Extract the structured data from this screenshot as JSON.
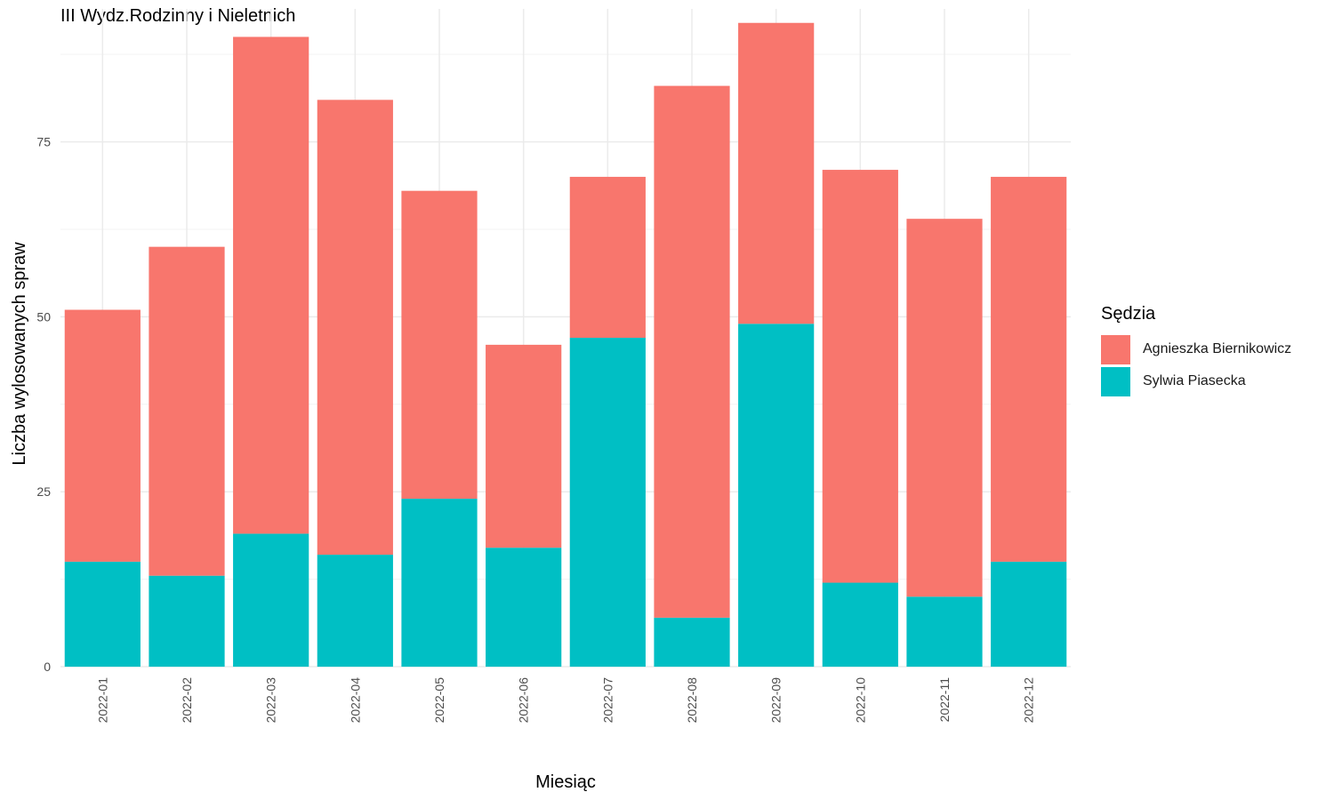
{
  "chart_data": {
    "type": "bar",
    "stacked": true,
    "title": "III Wydz.Rodzinny i Nieletnich",
    "xlabel": "Miesiąc",
    "ylabel": "Liczba wylosowanych spraw",
    "categories": [
      "2022-01",
      "2022-02",
      "2022-03",
      "2022-04",
      "2022-05",
      "2022-06",
      "2022-07",
      "2022-08",
      "2022-09",
      "2022-10",
      "2022-11",
      "2022-12"
    ],
    "series": [
      {
        "name": "Sylwia Piasecka",
        "color": "#00BFC4",
        "values": [
          15,
          13,
          19,
          16,
          24,
          17,
          47,
          7,
          49,
          12,
          10,
          15
        ]
      },
      {
        "name": "Agnieszka Biernikowicz",
        "color": "#F8766D",
        "values": [
          36,
          47,
          71,
          65,
          44,
          29,
          23,
          76,
          43,
          59,
          54,
          55
        ]
      }
    ],
    "yticks": [
      0,
      25,
      50,
      75
    ],
    "ylim": [
      0,
      94
    ],
    "grid": true,
    "legend": {
      "title": "Sędzia",
      "position": "right",
      "entries": [
        {
          "label": "Agnieszka Biernikowicz",
          "color": "#F8766D"
        },
        {
          "label": "Sylwia Piasecka",
          "color": "#00BFC4"
        }
      ]
    }
  }
}
